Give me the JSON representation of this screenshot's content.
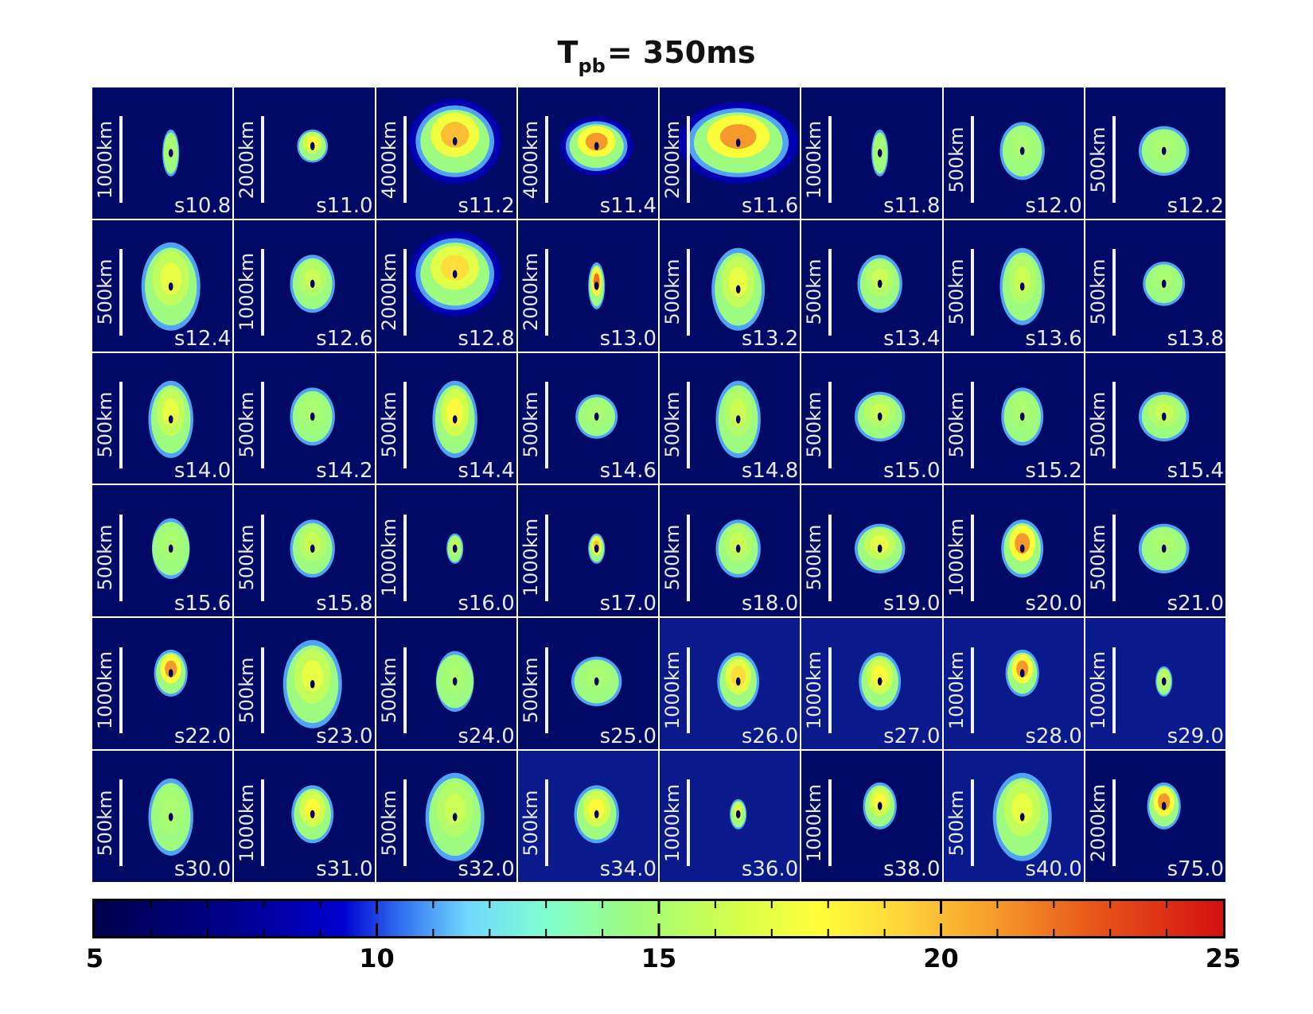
{
  "figure": {
    "title_main": "T",
    "title_sub": "pb",
    "title_rest": "= 350ms"
  },
  "chart_data": {
    "type": "heatmap",
    "title": "Tpb= 350ms",
    "grid": {
      "rows": 6,
      "cols": 8
    },
    "panels": [
      {
        "model": "s10.8",
        "scale": "1000km",
        "shape": "small-elongated",
        "peak": 15
      },
      {
        "model": "s11.0",
        "scale": "2000km",
        "shape": "small-lobed",
        "peak": 18
      },
      {
        "model": "s11.2",
        "scale": "4000km",
        "shape": "large-bilobed",
        "peak": 20
      },
      {
        "model": "s11.4",
        "scale": "4000km",
        "shape": "heart",
        "peak": 21
      },
      {
        "model": "s11.6",
        "scale": "2000km",
        "shape": "very-large-bilobed",
        "peak": 21
      },
      {
        "model": "s11.8",
        "scale": "1000km",
        "shape": "small-elongated",
        "peak": 15
      },
      {
        "model": "s12.0",
        "scale": "500km",
        "shape": "lobed",
        "peak": 15
      },
      {
        "model": "s12.2",
        "scale": "500km",
        "shape": "round",
        "peak": 15
      },
      {
        "model": "s12.4",
        "scale": "500km",
        "shape": "large-oval",
        "peak": 17
      },
      {
        "model": "s12.6",
        "scale": "1000km",
        "shape": "lobed",
        "peak": 16
      },
      {
        "model": "s12.8",
        "scale": "2000km",
        "shape": "large-bilobed",
        "peak": 19
      },
      {
        "model": "s13.0",
        "scale": "2000km",
        "shape": "small-elongated",
        "peak": 22
      },
      {
        "model": "s13.2",
        "scale": "500km",
        "shape": "pear",
        "peak": 17
      },
      {
        "model": "s13.4",
        "scale": "500km",
        "shape": "lobed",
        "peak": 16
      },
      {
        "model": "s13.6",
        "scale": "500km",
        "shape": "tall",
        "peak": 16
      },
      {
        "model": "s13.8",
        "scale": "500km",
        "shape": "round-small",
        "peak": 15
      },
      {
        "model": "s14.0",
        "scale": "500km",
        "shape": "tall",
        "peak": 17
      },
      {
        "model": "s14.2",
        "scale": "500km",
        "shape": "lobed",
        "peak": 15
      },
      {
        "model": "s14.4",
        "scale": "500km",
        "shape": "tall",
        "peak": 18
      },
      {
        "model": "s14.6",
        "scale": "500km",
        "shape": "round-small",
        "peak": 15
      },
      {
        "model": "s14.8",
        "scale": "500km",
        "shape": "tall",
        "peak": 16
      },
      {
        "model": "s15.0",
        "scale": "500km",
        "shape": "round",
        "peak": 16
      },
      {
        "model": "s15.2",
        "scale": "500km",
        "shape": "oval",
        "peak": 15
      },
      {
        "model": "s15.4",
        "scale": "500km",
        "shape": "round",
        "peak": 16
      },
      {
        "model": "s15.6",
        "scale": "500km",
        "shape": "diamond",
        "peak": 15
      },
      {
        "model": "s15.8",
        "scale": "500km",
        "shape": "lobed",
        "peak": 16
      },
      {
        "model": "s16.0",
        "scale": "1000km",
        "shape": "tiny",
        "peak": 16
      },
      {
        "model": "s17.0",
        "scale": "1000km",
        "shape": "tiny",
        "peak": 20
      },
      {
        "model": "s18.0",
        "scale": "500km",
        "shape": "lobed",
        "peak": 16
      },
      {
        "model": "s19.0",
        "scale": "500km",
        "shape": "round",
        "peak": 17
      },
      {
        "model": "s20.0",
        "scale": "1000km",
        "shape": "oval",
        "peak": 21
      },
      {
        "model": "s21.0",
        "scale": "500km",
        "shape": "round",
        "peak": 15
      },
      {
        "model": "s22.0",
        "scale": "1000km",
        "shape": "small-oval",
        "peak": 21
      },
      {
        "model": "s23.0",
        "scale": "500km",
        "shape": "large-oval",
        "peak": 17
      },
      {
        "model": "s24.0",
        "scale": "500km",
        "shape": "diamond",
        "peak": 15
      },
      {
        "model": "s25.0",
        "scale": "500km",
        "shape": "round",
        "peak": 15
      },
      {
        "model": "s26.0",
        "scale": "1000km",
        "shape": "oval",
        "peak": 19
      },
      {
        "model": "s27.0",
        "scale": "1000km",
        "shape": "oval",
        "peak": 18
      },
      {
        "model": "s28.0",
        "scale": "1000km",
        "shape": "small-oval",
        "peak": 21
      },
      {
        "model": "s29.0",
        "scale": "1000km",
        "shape": "tiny",
        "peak": 16
      },
      {
        "model": "s30.0",
        "scale": "500km",
        "shape": "tall",
        "peak": 15
      },
      {
        "model": "s31.0",
        "scale": "1000km",
        "shape": "oval",
        "peak": 18
      },
      {
        "model": "s32.0",
        "scale": "500km",
        "shape": "large-oval",
        "peak": 16
      },
      {
        "model": "s34.0",
        "scale": "500km",
        "shape": "lobed",
        "peak": 18
      },
      {
        "model": "s36.0",
        "scale": "1000km",
        "shape": "tiny",
        "peak": 17
      },
      {
        "model": "s38.0",
        "scale": "1000km",
        "shape": "small-oval",
        "peak": 18
      },
      {
        "model": "s40.0",
        "scale": "500km",
        "shape": "large-oval",
        "peak": 17
      },
      {
        "model": "s75.0",
        "scale": "2000km",
        "shape": "small-oval",
        "peak": 21
      }
    ],
    "light_background_models": [
      "s26.0",
      "s27.0",
      "s28.0",
      "s29.0",
      "s34.0",
      "s36.0",
      "s40.0"
    ],
    "colorbar": {
      "min": 5,
      "max": 25,
      "tick_labels": [
        "5",
        "10",
        "15",
        "20",
        "25"
      ],
      "tick_values": [
        5,
        10,
        15,
        20,
        25
      ],
      "minor_tick_step": 1
    }
  }
}
